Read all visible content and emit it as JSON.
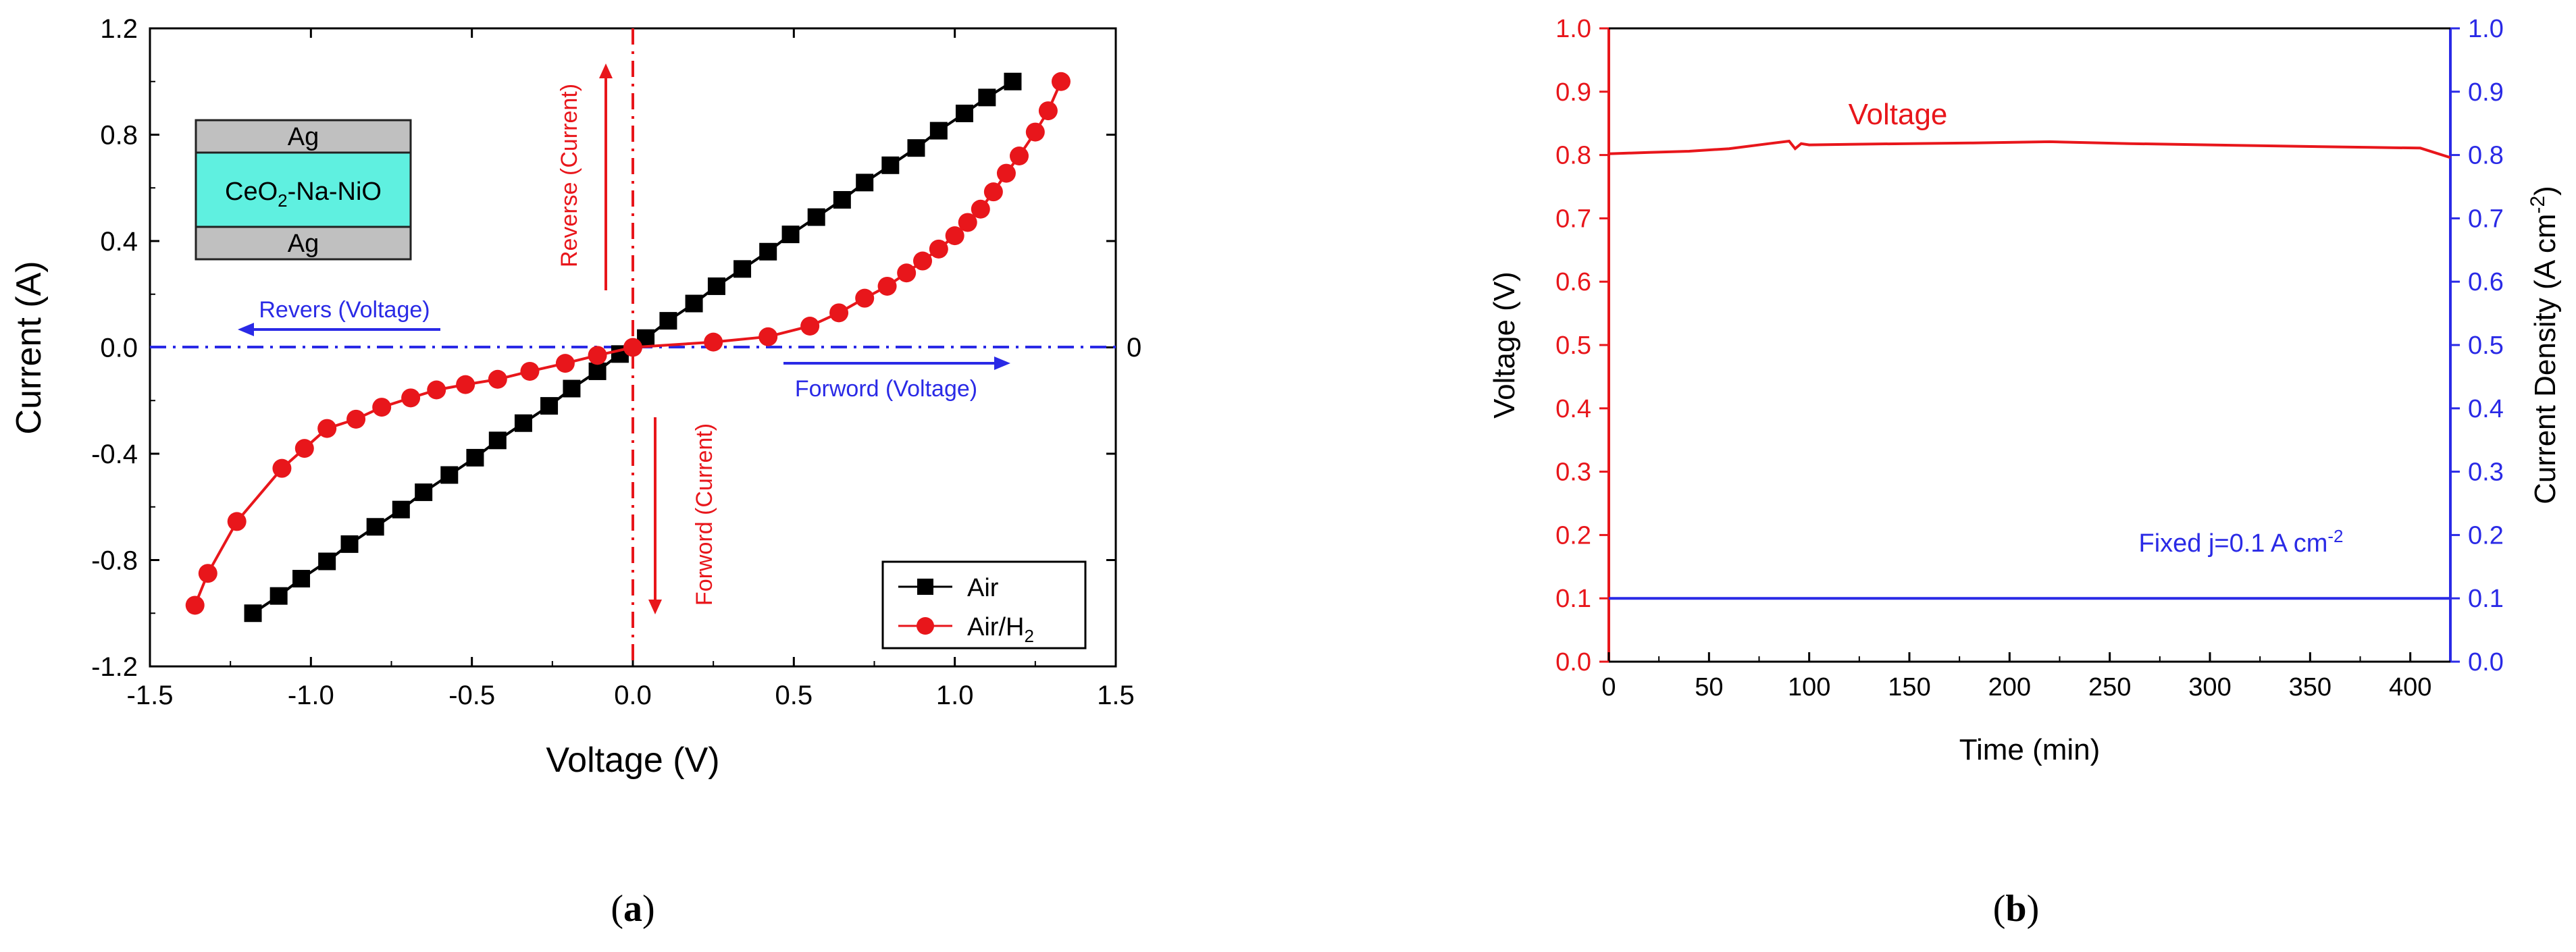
{
  "chart_data": [
    {
      "panel": "a",
      "type": "line",
      "caption": "(a)",
      "caption_letter": "a",
      "xlabel": "Voltage (V)",
      "ylabel": "Current (A)",
      "xlim": [
        -1.5,
        1.5
      ],
      "ylim": [
        -1.2,
        1.2
      ],
      "xticks": [
        -1.5,
        -1.0,
        -0.5,
        0.0,
        0.5,
        1.0,
        1.5
      ],
      "xtick_labels": [
        "-1.5",
        "-1.0",
        "-0.5",
        "0.0",
        "0.5",
        "1.0",
        "1.5"
      ],
      "yticks": [
        -1.2,
        -0.8,
        -0.4,
        0.0,
        0.4,
        0.8,
        1.2
      ],
      "ytick_labels": [
        "-1.2",
        "-0.8",
        "-0.4",
        "0.0",
        "0.4",
        "0.8",
        "1.2"
      ],
      "grid": false,
      "legend_position": "bottom-right",
      "series": [
        {
          "name": "Air",
          "color": "#000000",
          "marker": "square",
          "x": [
            -1.18,
            -1.1,
            -1.03,
            -0.95,
            -0.88,
            -0.8,
            -0.72,
            -0.65,
            -0.57,
            -0.49,
            -0.42,
            -0.34,
            -0.26,
            -0.19,
            -0.11,
            -0.04,
            0.04,
            0.11,
            0.19,
            0.26,
            0.34,
            0.42,
            0.49,
            0.57,
            0.65,
            0.72,
            0.8,
            0.88,
            0.95,
            1.03,
            1.1,
            1.18
          ],
          "y": [
            -1.0,
            -0.935,
            -0.87,
            -0.805,
            -0.74,
            -0.675,
            -0.61,
            -0.545,
            -0.48,
            -0.415,
            -0.35,
            -0.285,
            -0.22,
            -0.155,
            -0.09,
            -0.025,
            0.035,
            0.1,
            0.165,
            0.23,
            0.295,
            0.36,
            0.425,
            0.49,
            0.555,
            0.62,
            0.685,
            0.75,
            0.815,
            0.88,
            0.94,
            1.0
          ]
        },
        {
          "name": "Air/H2",
          "color": "#e8161b",
          "marker": "circle",
          "x": [
            -1.36,
            -1.32,
            -1.23,
            -1.09,
            -1.02,
            -0.95,
            -0.86,
            -0.78,
            -0.69,
            -0.61,
            -0.52,
            -0.42,
            -0.32,
            -0.21,
            -0.11,
            0.0,
            0.25,
            0.42,
            0.55,
            0.64,
            0.72,
            0.79,
            0.85,
            0.9,
            0.95,
            1.0,
            1.04,
            1.08,
            1.12,
            1.16,
            1.2,
            1.25,
            1.29,
            1.33
          ],
          "y": [
            -0.97,
            -0.85,
            -0.655,
            -0.455,
            -0.38,
            -0.305,
            -0.27,
            -0.225,
            -0.19,
            -0.16,
            -0.14,
            -0.12,
            -0.09,
            -0.06,
            -0.03,
            0.0,
            0.02,
            0.04,
            0.08,
            0.13,
            0.185,
            0.23,
            0.28,
            0.325,
            0.37,
            0.42,
            0.47,
            0.52,
            0.585,
            0.655,
            0.72,
            0.81,
            0.89,
            1.0
          ]
        }
      ],
      "legend": {
        "air": "Air",
        "airh2_main": "Air/H",
        "airh2_sub": "2"
      },
      "inset": {
        "top": "Ag",
        "middle_main": "CeO",
        "middle_sub": "2",
        "middle_rest": "-Na-NiO",
        "bottom": "Ag"
      },
      "annotations": {
        "reverse_current": "Reverse (Current)",
        "forward_current": "Forword (Current)",
        "reverse_voltage": "Revers (Voltage)",
        "forward_voltage": "Forword (Voltage)",
        "zero_label": "0"
      },
      "colors": {
        "blue": "#2a2ae6",
        "red": "#e8161b"
      }
    },
    {
      "panel": "b",
      "type": "line",
      "caption": "(b)",
      "caption_letter": "b",
      "xlabel": "Time (min)",
      "ylabel": "Voltage (V)",
      "y2label_main": "Current Density (A cm",
      "y2label_sup": "-2",
      "y2label_end": ")",
      "xlim": [
        0,
        420
      ],
      "ylim": [
        0.0,
        1.0
      ],
      "y2lim": [
        0.0,
        1.0
      ],
      "xticks": [
        0,
        50,
        100,
        150,
        200,
        250,
        300,
        350,
        400
      ],
      "xtick_labels": [
        "0",
        "50",
        "100",
        "150",
        "200",
        "250",
        "300",
        "350",
        "400"
      ],
      "yticks": [
        0.0,
        0.1,
        0.2,
        0.3,
        0.4,
        0.5,
        0.6,
        0.7,
        0.8,
        0.9,
        1.0
      ],
      "ytick_labels": [
        "0.0",
        "0.1",
        "0.2",
        "0.3",
        "0.4",
        "0.5",
        "0.6",
        "0.7",
        "0.8",
        "0.9",
        "1.0"
      ],
      "grid": false,
      "series": [
        {
          "name": "Voltage",
          "axis": "left",
          "color": "#e8161b",
          "x": [
            0,
            20,
            40,
            60,
            80,
            90,
            93,
            96,
            100,
            120,
            150,
            180,
            220,
            260,
            300,
            340,
            380,
            405,
            413,
            420
          ],
          "y": [
            0.802,
            0.804,
            0.806,
            0.81,
            0.818,
            0.822,
            0.81,
            0.818,
            0.816,
            0.817,
            0.818,
            0.819,
            0.821,
            0.818,
            0.816,
            0.814,
            0.812,
            0.811,
            0.803,
            0.796
          ]
        },
        {
          "name": "Current density",
          "axis": "right",
          "color": "#2a2ae6",
          "x": [
            0,
            420
          ],
          "y": [
            0.1,
            0.1
          ]
        }
      ],
      "annotations": {
        "voltage_label": "Voltage",
        "fixed_main": "Fixed j=0.1 A cm",
        "fixed_sup": "-2"
      },
      "colors": {
        "red": "#e8161b",
        "blue": "#2a2ae6"
      }
    }
  ]
}
